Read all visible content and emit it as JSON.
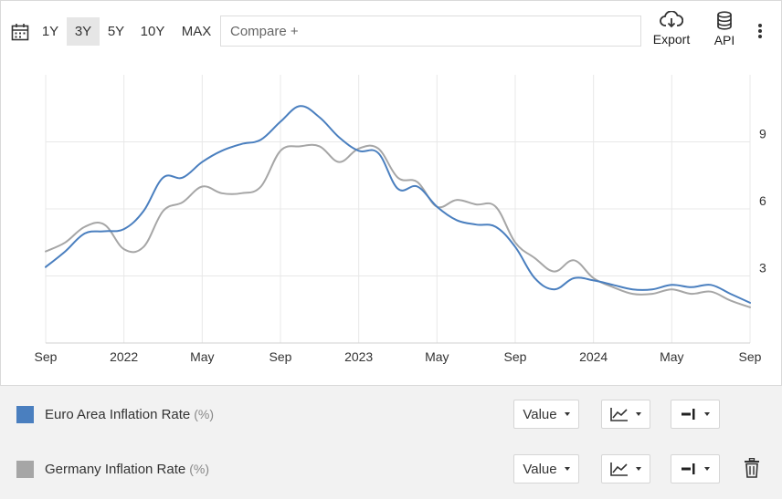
{
  "toolbar": {
    "ranges": [
      {
        "label": "1Y",
        "active": false
      },
      {
        "label": "3Y",
        "active": true
      },
      {
        "label": "5Y",
        "active": false
      },
      {
        "label": "10Y",
        "active": false
      },
      {
        "label": "MAX",
        "active": false
      }
    ],
    "compare_placeholder": "Compare +",
    "export_label": "Export",
    "api_label": "API",
    "icons": {
      "calendar": "calendar-icon",
      "export": "cloud-download-icon",
      "api": "database-icon",
      "more": "kebab-menu-icon",
      "delete": "trash-icon"
    }
  },
  "chart_data": {
    "type": "line",
    "title": "",
    "xlabel": "",
    "ylabel": "",
    "x_ticks": [
      "Sep",
      "2022",
      "May",
      "Sep",
      "2023",
      "May",
      "Sep",
      "2024",
      "May",
      "Sep"
    ],
    "y_ticks": [
      3,
      6,
      9
    ],
    "ylim": [
      0,
      12
    ],
    "grid": true,
    "y_axis_position": "right",
    "x": [
      "2021-09",
      "2021-10",
      "2021-11",
      "2021-12",
      "2022-01",
      "2022-02",
      "2022-03",
      "2022-04",
      "2022-05",
      "2022-06",
      "2022-07",
      "2022-08",
      "2022-09",
      "2022-10",
      "2022-11",
      "2022-12",
      "2023-01",
      "2023-02",
      "2023-03",
      "2023-04",
      "2023-05",
      "2023-06",
      "2023-07",
      "2023-08",
      "2023-09",
      "2023-10",
      "2023-11",
      "2023-12",
      "2024-01",
      "2024-02",
      "2024-03",
      "2024-04",
      "2024-05",
      "2024-06",
      "2024-07",
      "2024-08",
      "2024-09"
    ],
    "series": [
      {
        "name": "Euro Area Inflation Rate",
        "color": "#4a7fbf",
        "values": [
          3.4,
          4.1,
          4.9,
          5.0,
          5.1,
          5.9,
          7.4,
          7.4,
          8.1,
          8.6,
          8.9,
          9.1,
          9.9,
          10.6,
          10.1,
          9.2,
          8.6,
          8.5,
          6.9,
          7.0,
          6.1,
          5.5,
          5.3,
          5.2,
          4.3,
          2.9,
          2.4,
          2.9,
          2.8,
          2.6,
          2.4,
          2.4,
          2.6,
          2.5,
          2.6,
          2.2,
          1.8
        ]
      },
      {
        "name": "Germany Inflation Rate",
        "color": "#a6a6a6",
        "values": [
          4.1,
          4.5,
          5.2,
          5.3,
          4.2,
          4.3,
          5.9,
          6.3,
          7.0,
          6.7,
          6.7,
          7.0,
          8.6,
          8.8,
          8.8,
          8.1,
          8.7,
          8.7,
          7.4,
          7.2,
          6.1,
          6.4,
          6.2,
          6.1,
          4.5,
          3.8,
          3.2,
          3.7,
          2.9,
          2.5,
          2.2,
          2.2,
          2.4,
          2.2,
          2.3,
          1.9,
          1.6
        ]
      }
    ]
  },
  "legend": {
    "rows": [
      {
        "name": "Euro Area Inflation Rate",
        "unit": "(%)",
        "color": "#4a7fbf",
        "value_label": "Value",
        "deletable": false
      },
      {
        "name": "Germany Inflation Rate",
        "unit": "(%)",
        "color": "#a6a6a6",
        "value_label": "Value",
        "deletable": true
      }
    ]
  }
}
